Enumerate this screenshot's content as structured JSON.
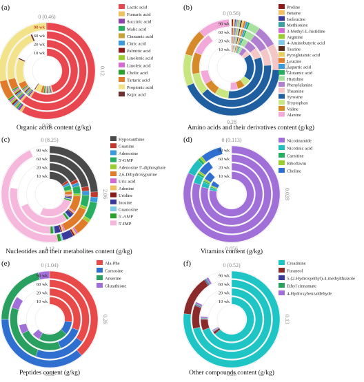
{
  "figure": {
    "panels": [
      {
        "letter": "(a)",
        "title": "Organic acids content (g/kg)"
      },
      {
        "letter": "(b)",
        "title": "Amino acids and their derivatives content (g/kg)"
      },
      {
        "letter": "(c)",
        "title": "Nucleotides and their metabolites content (g/kg)"
      },
      {
        "letter": "(d)",
        "title": "Vitamins content (g/kg)"
      },
      {
        "letter": "(e)",
        "title": "Peptides content (g/kg)"
      },
      {
        "letter": "(f)",
        "title": "Other compounds content (g/kg)"
      }
    ]
  },
  "chart_data": [
    {
      "type": "radial-stacked-bar",
      "title": "Organic acids content (g/kg)",
      "rings": [
        "10 wk",
        "20 wk",
        "60 wk",
        "90 wk"
      ],
      "ring_label_color": [
        "#222222",
        "#222222",
        "#222222",
        "#cc0000"
      ],
      "scale_max": 0.46,
      "axis_ticks": [
        "0 (0.46)",
        "0.12",
        "0.23",
        "0.35"
      ],
      "legend": [
        {
          "name": "Lactic acid",
          "color": "#e8474f"
        },
        {
          "name": "Fumaric acid",
          "color": "#f0c060"
        },
        {
          "name": "Succinic acid",
          "color": "#8e44ad"
        },
        {
          "name": "Malic acid",
          "color": "#27ae60"
        },
        {
          "name": "Cinnamic acid",
          "color": "#c7a23a"
        },
        {
          "name": "Citric acid",
          "color": "#3b9ad9"
        },
        {
          "name": "Palmitic acid",
          "color": "#8b1a1a"
        },
        {
          "name": "Linolenic acid",
          "color": "#9acd32"
        },
        {
          "name": "Linoleic acid",
          "color": "#d46bd4"
        },
        {
          "name": "Cholic acid",
          "color": "#2ca02c"
        },
        {
          "name": "Tartaric acid",
          "color": "#e07b2a"
        },
        {
          "name": "Propionic acid",
          "color": "#f2e38a"
        },
        {
          "name": "Kojic acid",
          "color": "#6b2f2f"
        }
      ],
      "series_values": [
        [
          0.21,
          0.27,
          0.28,
          0.27
        ],
        [
          0.004,
          0.004,
          0.004,
          0.004
        ],
        [
          0.004,
          0.004,
          0.004,
          0.004
        ],
        [
          0.003,
          0.003,
          0.003,
          0.003
        ],
        [
          0.003,
          0.003,
          0.003,
          0.003
        ],
        [
          0.003,
          0.003,
          0.003,
          0.003
        ],
        [
          0.003,
          0.003,
          0.003,
          0.003
        ],
        [
          0.003,
          0.003,
          0.003,
          0.003
        ],
        [
          0.003,
          0.003,
          0.003,
          0.003
        ],
        [
          0.005,
          0.003,
          0.003,
          0.003
        ],
        [
          0.01,
          0.015,
          0.02,
          0.03
        ],
        [
          0.02,
          0.06,
          0.1,
          0.13
        ],
        [
          0.003,
          0.003,
          0.003,
          0.003
        ]
      ]
    },
    {
      "type": "radial-stacked-bar",
      "title": "Amino acids and their derivatives content (g/kg)",
      "rings": [
        "10 wk",
        "20 wk",
        "60 wk",
        "90 wk"
      ],
      "scale_max": 0.56,
      "axis_ticks": [
        "0 (0.56)",
        "0.14",
        "0.28",
        "0.42"
      ],
      "legend": [
        {
          "name": "Proline",
          "color": "#8b1a1a"
        },
        {
          "name": "Betaine",
          "color": "#f0c060"
        },
        {
          "name": "Isoleucine",
          "color": "#3a3a9a"
        },
        {
          "name": "Methionine",
          "color": "#3aa0a0"
        },
        {
          "name": "3-Methyl-L-histidine",
          "color": "#d46bd4"
        },
        {
          "name": "Arginine",
          "color": "#9acd32"
        },
        {
          "name": "4-Aminobutyric acid",
          "color": "#7fc9e8"
        },
        {
          "name": "Taurine",
          "color": "#5a2a1a"
        },
        {
          "name": "Pyroglutamic acid",
          "color": "#e8d060"
        },
        {
          "name": "Leucine",
          "color": "#e07b2a"
        },
        {
          "name": "Aspartic acid",
          "color": "#3b9ad9"
        },
        {
          "name": "Glutamic acid",
          "color": "#27ae60"
        },
        {
          "name": "Histidine",
          "color": "#a8e0a0"
        },
        {
          "name": "Phenylalanine",
          "color": "#b07fd0"
        },
        {
          "name": "Theanine",
          "color": "#f5c6c6"
        },
        {
          "name": "Tyrosine",
          "color": "#1f5fa0"
        },
        {
          "name": "Tryptophan",
          "color": "#c8e680"
        },
        {
          "name": "Valine",
          "color": "#d68a2a"
        },
        {
          "name": "Alanine",
          "color": "#f2a8d8"
        }
      ],
      "series_values": [
        [
          0.003,
          0.003,
          0.003,
          0.003
        ],
        [
          0.003,
          0.003,
          0.003,
          0.003
        ],
        [
          0.002,
          0.002,
          0.002,
          0.002
        ],
        [
          0.002,
          0.002,
          0.002,
          0.002
        ],
        [
          0.002,
          0.002,
          0.002,
          0.002
        ],
        [
          0.003,
          0.003,
          0.003,
          0.003
        ],
        [
          0.002,
          0.002,
          0.002,
          0.002
        ],
        [
          0.003,
          0.003,
          0.003,
          0.003
        ],
        [
          0.003,
          0.003,
          0.003,
          0.003
        ],
        [
          0.004,
          0.004,
          0.004,
          0.004
        ],
        [
          0.004,
          0.004,
          0.004,
          0.004
        ],
        [
          0.004,
          0.004,
          0.004,
          0.004
        ],
        [
          0.01,
          0.015,
          0.02,
          0.02
        ],
        [
          0.02,
          0.03,
          0.04,
          0.04
        ],
        [
          0.02,
          0.03,
          0.04,
          0.05
        ],
        [
          0.11,
          0.18,
          0.22,
          0.24
        ],
        [
          0.03,
          0.04,
          0.05,
          0.06
        ],
        [
          0.03,
          0.04,
          0.05,
          0.05
        ],
        [
          0.03,
          0.04,
          0.05,
          0.06
        ]
      ]
    },
    {
      "type": "radial-stacked-bar",
      "title": "Nucleotides and their metabolites content (g/kg)",
      "rings": [
        "10 wk",
        "20 wk",
        "60 wk",
        "90 wk"
      ],
      "scale_max": 8.25,
      "axis_ticks": [
        "0 (8.25)",
        "2.06",
        "4.12",
        "6.18"
      ],
      "legend": [
        {
          "name": "Hypoxanthine",
          "color": "#4a4a4a"
        },
        {
          "name": "Guanine",
          "color": "#c0392b"
        },
        {
          "name": "Adenosine",
          "color": "#3b9ad9"
        },
        {
          "name": "5'-GMP",
          "color": "#27ae60"
        },
        {
          "name": "Adenosine 5'-diphosphate",
          "color": "#9acd32"
        },
        {
          "name": "2,6-Dihydroxypurine",
          "color": "#e07b2a"
        },
        {
          "name": "Uric acid",
          "color": "#d46bd4"
        },
        {
          "name": "Adenine",
          "color": "#f0c060"
        },
        {
          "name": "Uridine",
          "color": "#8b1a1a"
        },
        {
          "name": "Inosine",
          "color": "#3a3a9a"
        },
        {
          "name": "Guanosine",
          "color": "#7fc9e8"
        },
        {
          "name": "5'-AMP",
          "color": "#2ca02c"
        },
        {
          "name": "5'-IMP",
          "color": "#f5b8dc"
        }
      ],
      "series_values": [
        [
          1.2,
          1.4,
          1.8,
          2.0
        ],
        [
          0.15,
          0.15,
          0.15,
          0.15
        ],
        [
          0.15,
          0.15,
          0.15,
          0.15
        ],
        [
          0.3,
          0.35,
          0.4,
          0.5
        ],
        [
          0.1,
          0.1,
          0.1,
          0.1
        ],
        [
          0.2,
          0.7,
          1.0,
          0.4
        ],
        [
          0.05,
          0.05,
          0.05,
          0.05
        ],
        [
          0.05,
          0.05,
          0.05,
          0.05
        ],
        [
          0.05,
          0.05,
          0.05,
          0.05
        ],
        [
          0.1,
          0.2,
          0.2,
          0.3
        ],
        [
          0.05,
          0.05,
          0.05,
          0.05
        ],
        [
          0.1,
          0.1,
          0.1,
          0.1
        ],
        [
          2.2,
          2.3,
          2.3,
          3.8
        ]
      ]
    },
    {
      "type": "radial-stacked-bar",
      "title": "Vitamins content (g/kg)",
      "rings": [
        "10 wk",
        "20 wk",
        "60 wk",
        "90 wk"
      ],
      "scale_max": 0.113,
      "axis_ticks": [
        "0 (0.113)",
        "0.028",
        "0.056",
        "0.084"
      ],
      "legend": [
        {
          "name": "Nicotinamide",
          "color": "#a070d8"
        },
        {
          "name": "Nicotinic acid",
          "color": "#1fbfbf"
        },
        {
          "name": "Carnitine",
          "color": "#27ae60"
        },
        {
          "name": "Riboflavin",
          "color": "#9acd32"
        },
        {
          "name": "Choline",
          "color": "#2f6fd0"
        }
      ],
      "series_values": [
        [
          0.088,
          0.089,
          0.09,
          0.093
        ],
        [
          0.002,
          0.003,
          0.004,
          0.006
        ],
        [
          0.001,
          0.001,
          0.001,
          0.001
        ],
        [
          0.001,
          0.001,
          0.001,
          0.001
        ],
        [
          0.004,
          0.005,
          0.006,
          0.008
        ]
      ]
    },
    {
      "type": "radial-stacked-bar",
      "title": "Peptides content (g/kg)",
      "rings": [
        "10 wk",
        "20 wk",
        "60 wk",
        "90 wk"
      ],
      "scale_max": 1.04,
      "axis_ticks": [
        "0 (1.04)",
        "0.26",
        "0.52",
        "0.78"
      ],
      "legend": [
        {
          "name": "Ala-Phe",
          "color": "#e84a4a"
        },
        {
          "name": "Carnosine",
          "color": "#2f6fd0"
        },
        {
          "name": "Anserine",
          "color": "#2aa060"
        },
        {
          "name": "Glutathione",
          "color": "#a070d8"
        }
      ],
      "series_values": [
        [
          0.28,
          0.32,
          0.36,
          0.4
        ],
        [
          0.1,
          0.14,
          0.22,
          0.38
        ],
        [
          0.22,
          0.24,
          0.25,
          0.22
        ],
        [
          0.06,
          0.05,
          0.05,
          0.04
        ]
      ]
    },
    {
      "type": "radial-stacked-bar",
      "title": "Other compounds content (g/kg)",
      "rings": [
        "10 wk",
        "20 wk",
        "60 wk",
        "90 wk"
      ],
      "scale_max": 0.52,
      "axis_ticks": [
        "0 (0.52)",
        "0.13",
        "0.26",
        "0.39"
      ],
      "legend": [
        {
          "name": "Creatinine",
          "color": "#1fc4c4"
        },
        {
          "name": "Furaneol",
          "color": "#8b2a2a"
        },
        {
          "name": "5-(2-Hydroxyethyl)-4-methylthiazole",
          "color": "#3a3a9a"
        },
        {
          "name": "Ethyl cinnamate",
          "color": "#2aa060"
        },
        {
          "name": "4-Hydroxybenzaldehyde",
          "color": "#a070d8"
        }
      ],
      "series_values": [
        [
          0.33,
          0.36,
          0.37,
          0.4
        ],
        [
          0.01,
          0.03,
          0.05,
          0.07
        ],
        [
          0.002,
          0.002,
          0.002,
          0.002
        ],
        [
          0.002,
          0.002,
          0.002,
          0.002
        ],
        [
          0.004,
          0.004,
          0.004,
          0.004
        ]
      ]
    }
  ]
}
